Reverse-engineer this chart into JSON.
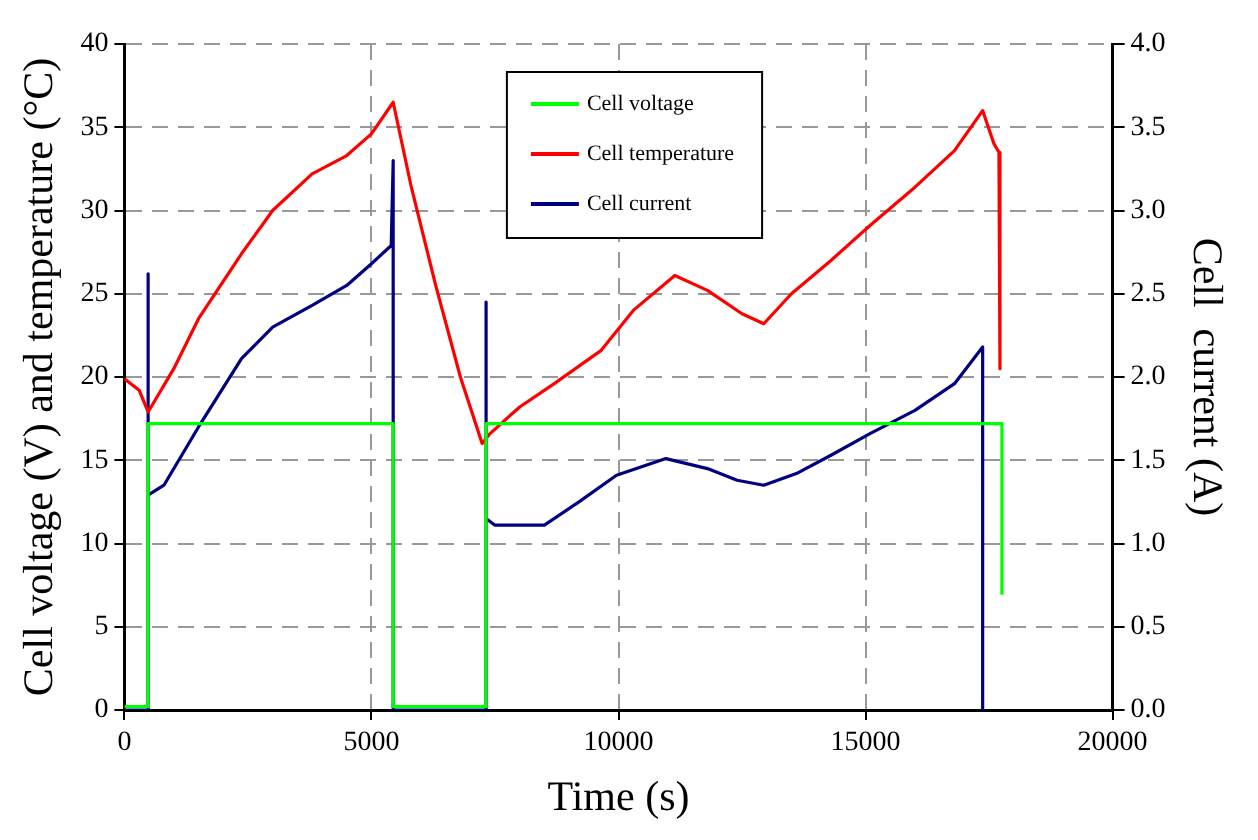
{
  "chart_data": {
    "type": "line",
    "xlabel": "Time (s)",
    "ylabel": "Cell voltage (V) and temperature (°C)",
    "y2label": "Cell  current (A)",
    "xlim": [
      0,
      20000
    ],
    "xticks": [
      0,
      5000,
      10000,
      15000,
      20000
    ],
    "ylim": [
      0,
      40
    ],
    "yticks": [
      0,
      5,
      10,
      15,
      20,
      25,
      30,
      35,
      40
    ],
    "y2lim": [
      0,
      4
    ],
    "y2ticks": [
      {
        "value": 0,
        "label": "0.0"
      },
      {
        "value": 0.5,
        "label": "0.5"
      },
      {
        "value": 1,
        "label": "1.0"
      },
      {
        "value": 1.5,
        "label": "1.5"
      },
      {
        "value": 2,
        "label": "2.0"
      },
      {
        "value": 2.5,
        "label": "2.5"
      },
      {
        "value": 3,
        "label": "3.0"
      },
      {
        "value": 3.5,
        "label": "3.5"
      },
      {
        "value": 4,
        "label": "4.0"
      }
    ],
    "grid": true,
    "legend": "top",
    "marker": "none",
    "line_style": "solid",
    "series": [
      {
        "name": "Cell voltage",
        "color": "#00ff00",
        "x": [
          0,
          480,
          480,
          5440,
          5440,
          7320,
          7320,
          17760,
          17760
        ],
        "values": [
          0.2,
          0.2,
          17.2,
          17.2,
          0.2,
          0.2,
          17.2,
          17.2,
          7
        ]
      },
      {
        "name": "Cell temperature",
        "color": "#ff0000",
        "x": [
          0,
          300,
          480,
          1000,
          1500,
          2370,
          3000,
          3800,
          4500,
          5000,
          5440,
          5800,
          6300,
          6800,
          7240,
          7400,
          8000,
          8700,
          9650,
          10300,
          11140,
          11800,
          12500,
          12940,
          13500,
          14300,
          15090,
          16000,
          16800,
          17370,
          17600,
          17700,
          17720
        ],
        "values": [
          19.9,
          19.2,
          17.9,
          20.5,
          23.5,
          27.4,
          30,
          32.2,
          33.3,
          34.6,
          36.5,
          31.5,
          25.5,
          20,
          16,
          16.6,
          18.2,
          19.6,
          21.6,
          24,
          26.1,
          25.2,
          23.8,
          23.2,
          25,
          27,
          29.1,
          31.4,
          33.6,
          36,
          34,
          33.5,
          20.5
        ]
      },
      {
        "name": "Cell current",
        "color": "#000080",
        "axis": "y2",
        "x": [
          0,
          480,
          480,
          480,
          800,
          1500,
          2370,
          3000,
          3800,
          4500,
          5000,
          5400,
          5440,
          5440,
          5440,
          7320,
          7320,
          7320,
          7500,
          8500,
          9200,
          9960,
          10960,
          11800,
          12400,
          12940,
          13600,
          14300,
          15090,
          16000,
          16800,
          17370,
          17370
        ],
        "values": [
          0,
          0,
          2.62,
          1.29,
          1.35,
          1.7,
          2.11,
          2.3,
          2.43,
          2.55,
          2.68,
          2.79,
          3.3,
          0,
          0,
          0,
          2.45,
          1.15,
          1.11,
          1.11,
          1.25,
          1.41,
          1.51,
          1.45,
          1.38,
          1.35,
          1.42,
          1.53,
          1.66,
          1.8,
          1.96,
          2.18,
          0
        ]
      }
    ]
  }
}
